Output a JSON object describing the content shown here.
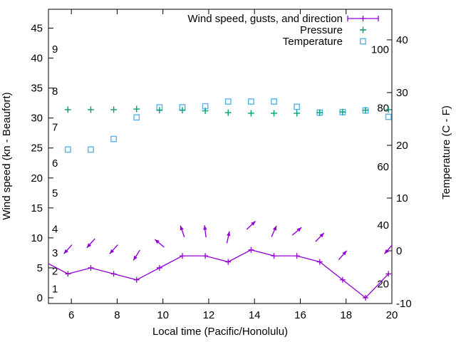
{
  "colors": {
    "wind": "#9400d3",
    "pressure": "#009e73",
    "temperature": "#56b4e9",
    "axis": "#000000",
    "background": "#ffffff"
  },
  "chart_data": {
    "type": "line",
    "xlabel": "Local time (Pacific/Honolulu)",
    "ylabel_left": "Wind speed (kn - Beaufort)",
    "ylabel_right": "Temperature (C - F)",
    "xlim": [
      5,
      20
    ],
    "x_ticks": [
      6,
      8,
      10,
      12,
      14,
      16,
      18,
      20
    ],
    "left_lim": [
      -0.95,
      48.15
    ],
    "left_ticks": [
      0,
      5,
      10,
      15,
      20,
      25,
      30,
      35,
      40,
      45
    ],
    "right_lim": [
      -10,
      45.8
    ],
    "right_ticks": [
      -10,
      0,
      10,
      20,
      30,
      40
    ],
    "beaufort_labels": [
      {
        "beaufort": "1",
        "kn": 1
      },
      {
        "beaufort": "2",
        "kn": 4
      },
      {
        "beaufort": "3",
        "kn": 7
      },
      {
        "beaufort": "4",
        "kn": 11
      },
      {
        "beaufort": "5",
        "kn": 17
      },
      {
        "beaufort": "6",
        "kn": 22
      },
      {
        "beaufort": "7",
        "kn": 28
      },
      {
        "beaufort": "8",
        "kn": 34
      },
      {
        "beaufort": "9",
        "kn": 41
      }
    ],
    "fahrenheit_labels": [
      20,
      40,
      60,
      80,
      100
    ],
    "legend": [
      {
        "label": "Wind speed, gusts, and direction",
        "glyph": "errorbar",
        "color": "#9400d3"
      },
      {
        "label": "Pressure",
        "glyph": "plus",
        "color": "#009e73"
      },
      {
        "label": "Temperature",
        "glyph": "square",
        "color": "#56b4e9"
      }
    ],
    "x_hours": [
      5.85,
      6.85,
      7.85,
      8.85,
      9.85,
      10.85,
      11.85,
      12.85,
      13.85,
      14.85,
      15.85,
      16.85,
      17.85,
      18.85,
      19.85
    ],
    "series": {
      "wind_speed_kn": {
        "pre_point": {
          "x": 4.85,
          "value": 6
        },
        "values": [
          4,
          5,
          4,
          3,
          5,
          7,
          7,
          6,
          8,
          7,
          7,
          6,
          3,
          0,
          4
        ]
      },
      "wind_direction_deg_pointing": [
        222,
        222,
        222,
        212,
        310,
        341,
        353,
        12,
        47,
        24,
        50,
        44,
        41,
        null,
        221
      ],
      "pressure_left_axis_units": [
        31.4,
        31.4,
        31.4,
        31.5,
        31.3,
        31.3,
        31.2,
        30.9,
        30.8,
        30.8,
        30.8,
        30.9,
        31.0,
        31.3,
        31.4
      ],
      "temperature_c": [
        19.2,
        19.2,
        21.2,
        25.3,
        27.2,
        27.2,
        27.4,
        28.3,
        28.3,
        28.3,
        27.3,
        26.2,
        26.3,
        26.6,
        25.4
      ]
    }
  }
}
